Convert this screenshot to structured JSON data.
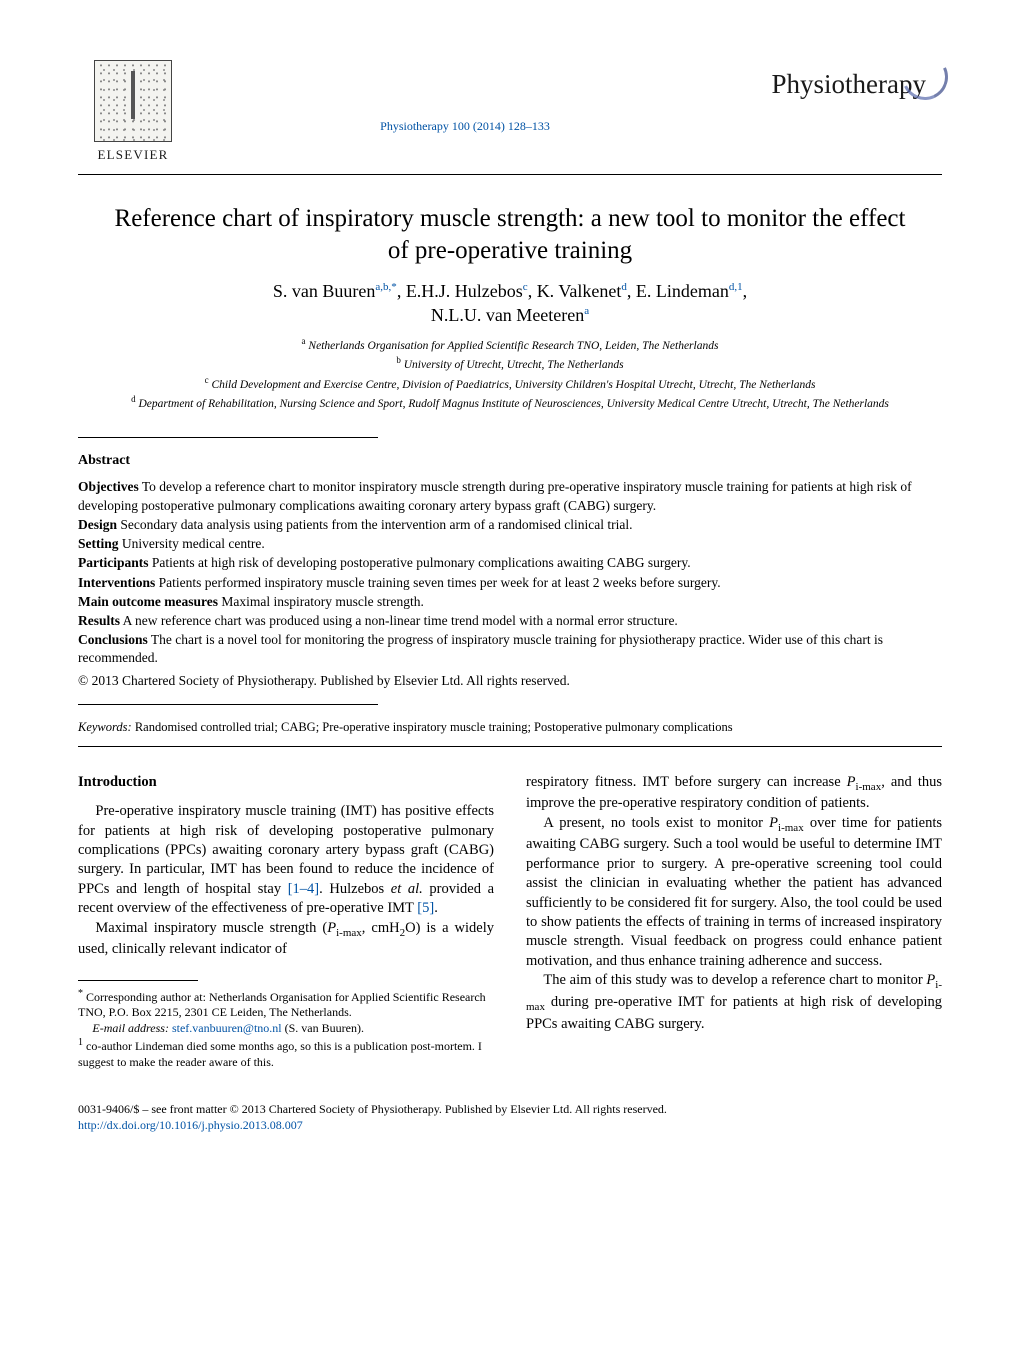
{
  "header": {
    "elsevier_label": "ELSEVIER",
    "journal_ref_text": "Physiotherapy 100 (2014) 128–133",
    "physio_wordmark": "Physiotherapy"
  },
  "title": "Reference chart of inspiratory muscle strength: a new tool to monitor the effect of pre-operative training",
  "authors_line1": "S. van Buuren",
  "authors_sup1": "a,b,*",
  "authors_sep1": ", E.H.J. Hulzebos",
  "authors_sup2": "c",
  "authors_sep2": ", K. Valkenet",
  "authors_sup3": "d",
  "authors_sep3": ", E. Lindeman",
  "authors_sup4": "d,1",
  "authors_sep4": ",",
  "authors_line2": "N.L.U. van Meeteren",
  "authors_sup5": "a",
  "affiliations": {
    "a_sup": "a",
    "a": " Netherlands Organisation for Applied Scientific Research TNO, Leiden, The Netherlands",
    "b_sup": "b",
    "b": " University of Utrecht, Utrecht, The Netherlands",
    "c_sup": "c",
    "c": " Child Development and Exercise Centre, Division of Paediatrics, University Children's Hospital Utrecht, Utrecht, The Netherlands",
    "d_sup": "d",
    "d": " Department of Rehabilitation, Nursing Science and Sport, Rudolf Magnus Institute of Neurosciences, University Medical Centre Utrecht, Utrecht, The Netherlands"
  },
  "abstract": {
    "heading": "Abstract",
    "objectives_label": "Objectives",
    "objectives": " To develop a reference chart to monitor inspiratory muscle strength during pre-operative inspiratory muscle training for patients at high risk of developing postoperative pulmonary complications awaiting coronary artery bypass graft (CABG) surgery.",
    "design_label": "Design",
    "design": " Secondary data analysis using patients from the intervention arm of a randomised clinical trial.",
    "setting_label": "Setting",
    "setting": " University medical centre.",
    "participants_label": "Participants",
    "participants": " Patients at high risk of developing postoperative pulmonary complications awaiting CABG surgery.",
    "interventions_label": "Interventions",
    "interventions": " Patients performed inspiratory muscle training seven times per week for at least 2 weeks before surgery.",
    "outcome_label": "Main outcome measures",
    "outcome": " Maximal inspiratory muscle strength.",
    "results_label": "Results",
    "results": " A new reference chart was produced using a non-linear time trend model with a normal error structure.",
    "conclusions_label": "Conclusions",
    "conclusions": " The chart is a novel tool for monitoring the progress of inspiratory muscle training for physiotherapy practice. Wider use of this chart is recommended.",
    "copyright": "© 2013 Chartered Society of Physiotherapy. Published by Elsevier Ltd. All rights reserved."
  },
  "keywords": {
    "label": "Keywords:",
    "text": "  Randomised controlled trial; CABG; Pre-operative inspiratory muscle training; Postoperative pulmonary complications"
  },
  "body": {
    "intro_heading": "Introduction",
    "p1a": "Pre-operative inspiratory muscle training (IMT) has positive effects for patients at high risk of developing postoperative pulmonary complications (PPCs) awaiting coronary artery bypass graft (CABG) surgery. In particular, IMT has been found to reduce the incidence of PPCs and length of hospital stay ",
    "p1_ref1": "[1–4]",
    "p1b": ". Hulzebos ",
    "p1_etal": "et al.",
    "p1c": " provided a recent overview of the effectiveness of pre-operative IMT ",
    "p1_ref2": "[5]",
    "p1d": ".",
    "p2a": "Maximal inspiratory muscle strength (",
    "p2_sym1": "P",
    "p2_sub1": "i-max",
    "p2b": ", cmH",
    "p2_sub2": "2",
    "p2c": "O) is a widely used, clinically relevant indicator of ",
    "p3a": "respiratory fitness. IMT before surgery can increase ",
    "p3_sym1": "P",
    "p3_sub1": "i-max",
    "p3b": ", and thus improve the pre-operative respiratory condition of patients.",
    "p4a": "A present, no tools exist to monitor ",
    "p4_sym1": "P",
    "p4_sub1": "i-max",
    "p4b": " over time for patients awaiting CABG surgery. Such a tool would be useful to determine IMT performance prior to surgery. A pre-operative screening tool could assist the clinician in evaluating whether the patient has advanced sufficiently to be considered fit for surgery. Also, the tool could be used to show patients the effects of training in terms of increased inspiratory muscle strength. Visual feedback on progress could enhance patient motivation, and thus enhance training adherence and success.",
    "p5a": "The aim of this study was to develop a reference chart to monitor ",
    "p5_sym1": "P",
    "p5_sub1": "i-max",
    "p5b": " during pre-operative IMT for patients at high risk of developing PPCs awaiting CABG surgery."
  },
  "footnotes": {
    "corr_mark": "*",
    "corr": " Corresponding author at: Netherlands Organisation for Applied Scientific Research TNO, P.O. Box 2215, 2301 CE Leiden, The Netherlands.",
    "email_label": "E-mail address: ",
    "email": "stef.vanbuuren@tno.nl",
    "email_paren": " (S. van Buuren).",
    "note1_mark": "1",
    "note1": " co-author Lindeman died some months ago, so this is a publication post-mortem. I suggest to make the reader aware of this."
  },
  "bottom": {
    "line1": "0031-9406/$ – see front matter © 2013 Chartered Society of Physiotherapy. Published by Elsevier Ltd. All rights reserved.",
    "doi": "http://dx.doi.org/10.1016/j.physio.2013.08.007"
  }
}
